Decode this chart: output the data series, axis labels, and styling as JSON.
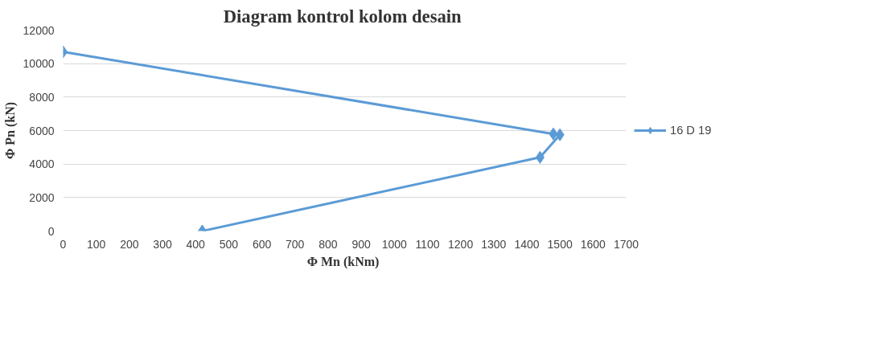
{
  "chart_data": {
    "type": "line",
    "title": "Diagram kontrol  kolom desain",
    "xlabel": "Φ Mn  (kNm)",
    "ylabel": "Φ Pn (kN)",
    "series": [
      {
        "name": "16 D 19",
        "color": "#5b9bd5",
        "x": [
          0,
          1480,
          1500,
          1440,
          420
        ],
        "values": [
          10700,
          5800,
          5750,
          4400,
          0
        ]
      }
    ],
    "xlim": [
      0,
      1700
    ],
    "xticks": [
      0,
      100,
      200,
      300,
      400,
      500,
      600,
      700,
      800,
      900,
      1000,
      1100,
      1200,
      1300,
      1400,
      1500,
      1600,
      1700
    ],
    "ylim": [
      0,
      12000
    ],
    "yticks": [
      0,
      2000,
      4000,
      6000,
      8000,
      10000,
      12000
    ],
    "grid": "y",
    "legend": "right",
    "marker": "diamond",
    "line_style": "solid"
  }
}
